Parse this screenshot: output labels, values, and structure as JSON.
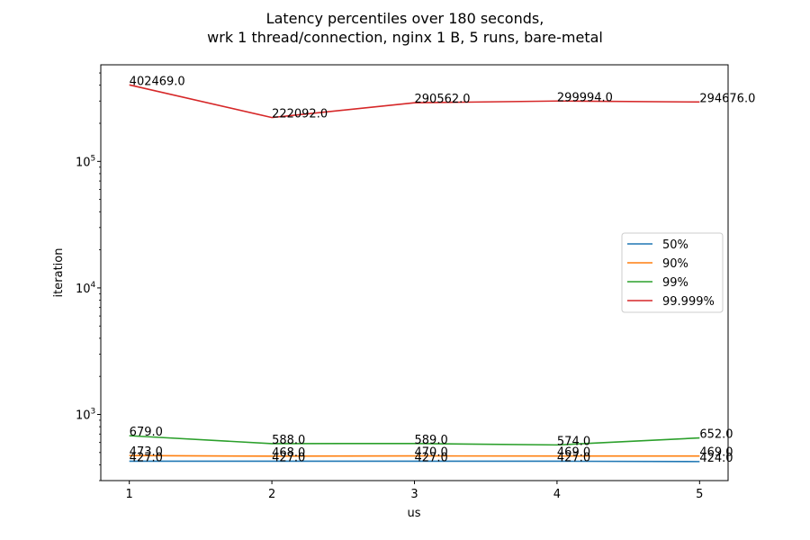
{
  "chart_data": {
    "type": "line",
    "title": "Latency percentiles over 180 seconds,",
    "subtitle": "wrk 1 thread/connection, nginx 1 B, 5 runs, bare-metal",
    "xlabel": "us",
    "ylabel": "iteration",
    "x": [
      1,
      2,
      3,
      4,
      5
    ],
    "x_ticks": [
      "1",
      "2",
      "3",
      "4",
      "5"
    ],
    "y_scale": "log",
    "y_ticks": [
      {
        "value": 1000,
        "base": "10",
        "exp": "3"
      },
      {
        "value": 10000,
        "base": "10",
        "exp": "4"
      },
      {
        "value": 100000,
        "base": "10",
        "exp": "5"
      }
    ],
    "ylim": [
      300,
      580000
    ],
    "xlim": [
      0.8,
      5.2
    ],
    "grid": false,
    "legend_position": "center-right",
    "series": [
      {
        "name": "50%",
        "color": "#1f77b4",
        "values": [
          427.0,
          427.0,
          427.0,
          427.0,
          424.0
        ],
        "labels": [
          "427.0",
          "427.0",
          "427.0",
          "427.0",
          "424.0"
        ]
      },
      {
        "name": "90%",
        "color": "#ff7f0e",
        "values": [
          473.0,
          468.0,
          470.0,
          469.0,
          469.0
        ],
        "labels": [
          "473.0",
          "468.0",
          "470.0",
          "469.0",
          "469.0"
        ]
      },
      {
        "name": "99%",
        "color": "#2ca02c",
        "values": [
          679.0,
          588.0,
          589.0,
          574.0,
          652.0
        ],
        "labels": [
          "679.0",
          "588.0",
          "589.0",
          "574.0",
          "652.0"
        ]
      },
      {
        "name": "99.999%",
        "color": "#d62728",
        "values": [
          402469.0,
          222092.0,
          290562.0,
          299994.0,
          294676.0
        ],
        "labels": [
          "402469.0",
          "222092.0",
          "290562.0",
          "299994.0",
          "294676.0"
        ]
      }
    ]
  }
}
